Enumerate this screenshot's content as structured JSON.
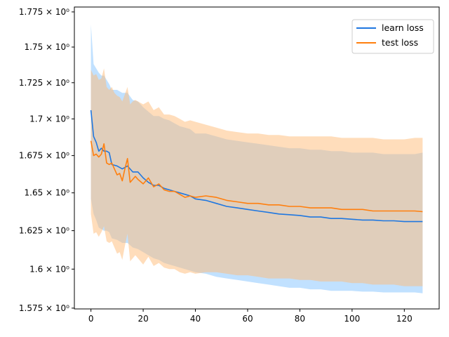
{
  "chart_data": {
    "type": "line",
    "title": "",
    "xlabel": "",
    "ylabel": "",
    "xlim": [
      -6.35,
      133.35
    ],
    "ylim": [
      1.5745,
      1.7785
    ],
    "y_scale": "log",
    "grid": false,
    "legend_placement": "top-right",
    "x_ticks": [
      {
        "value": 0,
        "label": "0"
      },
      {
        "value": 20,
        "label": "20"
      },
      {
        "value": 40,
        "label": "40"
      },
      {
        "value": 60,
        "label": "60"
      },
      {
        "value": 80,
        "label": "80"
      },
      {
        "value": 100,
        "label": "100"
      },
      {
        "value": 120,
        "label": "120"
      }
    ],
    "y_ticks": [
      {
        "value": 1.575,
        "label": "1.575 × 10⁰"
      },
      {
        "value": 1.6,
        "label": "1.6 × 10⁰"
      },
      {
        "value": 1.625,
        "label": "1.625 × 10⁰"
      },
      {
        "value": 1.65,
        "label": "1.65 × 10⁰"
      },
      {
        "value": 1.675,
        "label": "1.675 × 10⁰"
      },
      {
        "value": 1.7,
        "label": "1.7 × 10⁰"
      },
      {
        "value": 1.725,
        "label": "1.725 × 10⁰"
      },
      {
        "value": 1.75,
        "label": "1.75 × 10⁰"
      },
      {
        "value": 1.775,
        "label": "1.775 × 10⁰"
      }
    ],
    "series": [
      {
        "name": "learn loss",
        "color": "#1f77e0",
        "band_color": "#8ec9ff",
        "band_opacity": 0.55,
        "x": [
          0,
          1,
          2,
          3,
          4,
          5,
          6,
          7,
          8,
          10,
          12,
          14,
          16,
          18,
          20,
          22,
          24,
          26,
          28,
          30,
          32,
          34,
          36,
          38,
          40,
          44,
          48,
          52,
          56,
          60,
          64,
          68,
          72,
          76,
          80,
          84,
          88,
          92,
          96,
          100,
          104,
          108,
          112,
          116,
          120,
          124,
          127
        ],
        "mean": [
          1.706,
          1.688,
          1.684,
          1.678,
          1.68,
          1.678,
          1.678,
          1.677,
          1.669,
          1.668,
          1.666,
          1.668,
          1.664,
          1.664,
          1.66,
          1.657,
          1.655,
          1.655,
          1.653,
          1.652,
          1.651,
          1.65,
          1.649,
          1.648,
          1.646,
          1.645,
          1.643,
          1.641,
          1.64,
          1.639,
          1.638,
          1.637,
          1.636,
          1.6355,
          1.635,
          1.634,
          1.634,
          1.633,
          1.633,
          1.6325,
          1.632,
          1.632,
          1.6315,
          1.6315,
          1.631,
          1.631,
          1.631
        ],
        "upper": [
          1.766,
          1.738,
          1.735,
          1.732,
          1.73,
          1.73,
          1.727,
          1.724,
          1.72,
          1.72,
          1.718,
          1.718,
          1.713,
          1.712,
          1.708,
          1.705,
          1.702,
          1.702,
          1.7,
          1.699,
          1.697,
          1.695,
          1.694,
          1.693,
          1.69,
          1.69,
          1.688,
          1.686,
          1.685,
          1.684,
          1.683,
          1.682,
          1.681,
          1.68,
          1.68,
          1.679,
          1.679,
          1.678,
          1.678,
          1.677,
          1.677,
          1.677,
          1.676,
          1.676,
          1.676,
          1.676,
          1.677
        ],
        "lower": [
          1.646,
          1.636,
          1.632,
          1.627,
          1.626,
          1.625,
          1.625,
          1.624,
          1.62,
          1.619,
          1.617,
          1.617,
          1.614,
          1.613,
          1.611,
          1.609,
          1.607,
          1.606,
          1.604,
          1.603,
          1.602,
          1.601,
          1.6,
          1.599,
          1.598,
          1.597,
          1.595,
          1.594,
          1.593,
          1.592,
          1.591,
          1.59,
          1.589,
          1.588,
          1.588,
          1.587,
          1.587,
          1.586,
          1.586,
          1.586,
          1.5855,
          1.5855,
          1.585,
          1.585,
          1.585,
          1.585,
          1.5845
        ]
      },
      {
        "name": "test loss",
        "color": "#ff7f0e",
        "band_color": "#ffbb78",
        "band_opacity": 0.5,
        "x": [
          0,
          1,
          2,
          3,
          4,
          5,
          6,
          7,
          8,
          9,
          10,
          11,
          12,
          13,
          14,
          15,
          16,
          17,
          18,
          20,
          22,
          24,
          26,
          28,
          30,
          32,
          34,
          36,
          38,
          40,
          44,
          48,
          52,
          56,
          60,
          64,
          68,
          72,
          76,
          80,
          84,
          88,
          92,
          96,
          100,
          104,
          108,
          112,
          116,
          120,
          124,
          127
        ],
        "mean": [
          1.685,
          1.675,
          1.676,
          1.674,
          1.676,
          1.683,
          1.67,
          1.669,
          1.67,
          1.666,
          1.662,
          1.663,
          1.658,
          1.666,
          1.673,
          1.657,
          1.659,
          1.661,
          1.659,
          1.656,
          1.66,
          1.654,
          1.656,
          1.652,
          1.651,
          1.651,
          1.649,
          1.647,
          1.648,
          1.647,
          1.648,
          1.647,
          1.645,
          1.644,
          1.643,
          1.643,
          1.642,
          1.642,
          1.641,
          1.641,
          1.64,
          1.64,
          1.64,
          1.639,
          1.639,
          1.639,
          1.638,
          1.638,
          1.638,
          1.638,
          1.638,
          1.6375
        ],
        "upper": [
          1.734,
          1.73,
          1.731,
          1.727,
          1.728,
          1.735,
          1.722,
          1.72,
          1.722,
          1.718,
          1.716,
          1.715,
          1.712,
          1.717,
          1.722,
          1.71,
          1.712,
          1.713,
          1.712,
          1.71,
          1.712,
          1.706,
          1.708,
          1.703,
          1.703,
          1.702,
          1.7,
          1.698,
          1.699,
          1.698,
          1.696,
          1.694,
          1.692,
          1.691,
          1.69,
          1.69,
          1.689,
          1.689,
          1.688,
          1.688,
          1.688,
          1.688,
          1.688,
          1.687,
          1.687,
          1.687,
          1.687,
          1.686,
          1.686,
          1.686,
          1.687,
          1.687
        ],
        "lower": [
          1.636,
          1.623,
          1.624,
          1.621,
          1.624,
          1.628,
          1.618,
          1.617,
          1.618,
          1.614,
          1.61,
          1.611,
          1.606,
          1.615,
          1.623,
          1.605,
          1.607,
          1.609,
          1.607,
          1.603,
          1.608,
          1.602,
          1.604,
          1.601,
          1.6,
          1.6,
          1.598,
          1.597,
          1.598,
          1.597,
          1.598,
          1.598,
          1.597,
          1.596,
          1.596,
          1.595,
          1.594,
          1.594,
          1.594,
          1.593,
          1.593,
          1.592,
          1.592,
          1.592,
          1.591,
          1.591,
          1.59,
          1.59,
          1.59,
          1.589,
          1.589,
          1.589
        ]
      }
    ]
  }
}
